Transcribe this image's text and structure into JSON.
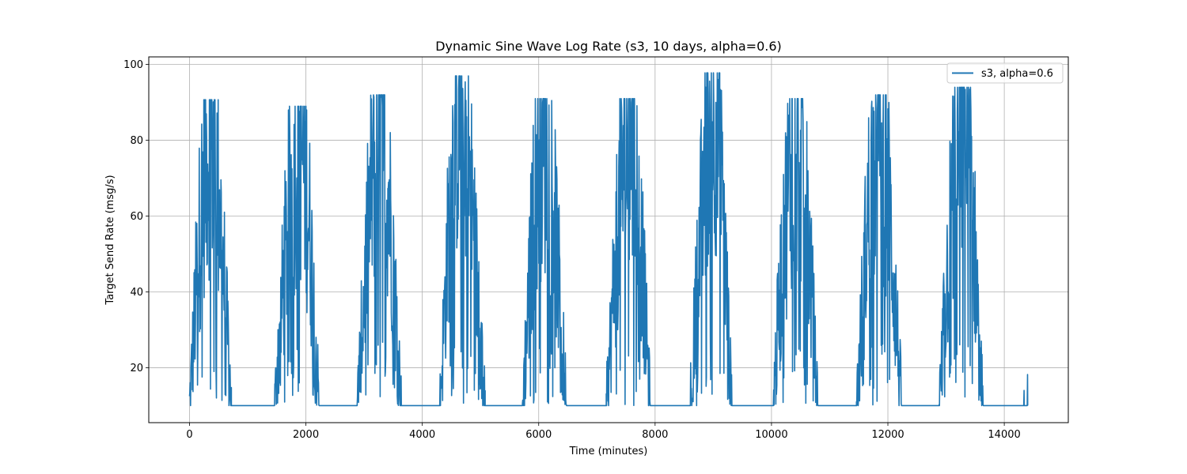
{
  "chart_data": {
    "type": "line",
    "title": "Dynamic Sine Wave Log Rate (s3, 10 days, alpha=0.6)",
    "xlabel": "Time (minutes)",
    "ylabel": "Target Send Rate (msg/s)",
    "xlim": [
      -700,
      15100
    ],
    "ylim": [
      5.5,
      102
    ],
    "xticks": [
      0,
      2000,
      4000,
      6000,
      8000,
      10000,
      12000,
      14000
    ],
    "xtick_labels": [
      "0",
      "2000",
      "4000",
      "6000",
      "8000",
      "10000",
      "12000",
      "14000"
    ],
    "yticks": [
      20,
      40,
      60,
      80,
      100
    ],
    "ytick_labels": [
      "20",
      "40",
      "60",
      "80",
      "100"
    ],
    "grid": true,
    "legend_position": "top-right",
    "color": "#1f77b4",
    "series": [
      {
        "name": "s3, alpha=0.6",
        "cycle_minutes": 1440,
        "baseline": 10,
        "cycles": [
          {
            "start": 0,
            "peak_time": 360,
            "end": 720,
            "peak": 90.7
          },
          {
            "start": 1460,
            "peak_time": 1900,
            "end": 2230,
            "peak": 89.0
          },
          {
            "start": 2880,
            "peak_time": 3280,
            "end": 3640,
            "peak": 92.0
          },
          {
            "start": 4300,
            "peak_time": 4640,
            "end": 5080,
            "peak": 97.0
          },
          {
            "start": 5720,
            "peak_time": 6080,
            "end": 6480,
            "peak": 91.0
          },
          {
            "start": 7160,
            "peak_time": 7560,
            "end": 7920,
            "peak": 91.0
          },
          {
            "start": 8600,
            "peak_time": 9000,
            "end": 9320,
            "peak": 97.8
          },
          {
            "start": 10020,
            "peak_time": 10440,
            "end": 10800,
            "peak": 91.0
          },
          {
            "start": 11460,
            "peak_time": 11840,
            "end": 12240,
            "peak": 92.0
          },
          {
            "start": 12880,
            "peak_time": 13280,
            "end": 13640,
            "peak": 94.0
          }
        ],
        "end_points": [
          {
            "x": 14340,
            "y": 14.0
          },
          {
            "x": 14400,
            "y": 18.2
          }
        ]
      }
    ]
  }
}
